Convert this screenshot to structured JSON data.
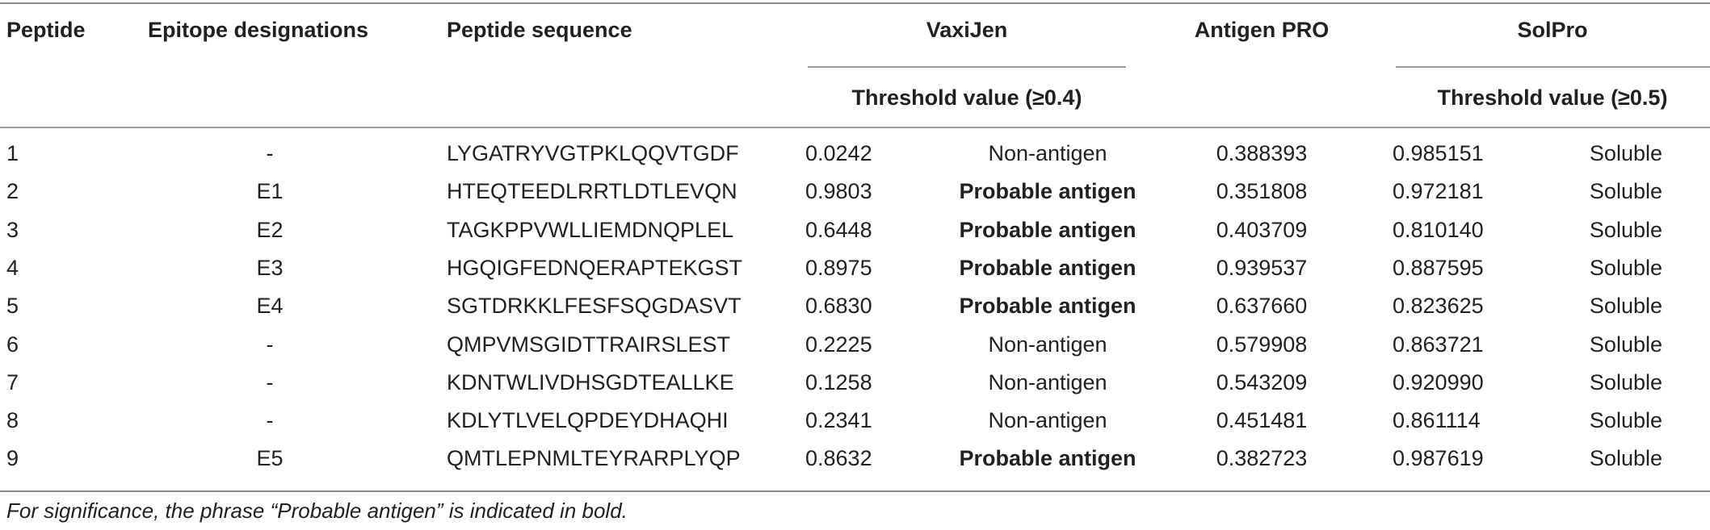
{
  "headers": {
    "peptide": "Peptide",
    "epitope": "Epitope designations",
    "sequence": "Peptide sequence",
    "vaxijen": "VaxiJen",
    "antigenpro": "Antigen PRO",
    "solpro": "SolPro",
    "vaxijen_threshold": "Threshold value (≥0.4)",
    "solpro_threshold": "Threshold value (≥0.5)"
  },
  "rows": [
    {
      "peptide": "1",
      "epitope": "-",
      "sequence": "LYGATRYVGTPKLQQVTGDF",
      "vaxijen_score": "0.0242",
      "vaxijen_call": "Non-antigen",
      "antigenpro": "0.388393",
      "solpro_score": "0.985151",
      "solpro_call": "Soluble"
    },
    {
      "peptide": "2",
      "epitope": "E1",
      "sequence": "HTEQTEEDLRRTLDTLEVQN",
      "vaxijen_score": "0.9803",
      "vaxijen_call": "Probable antigen",
      "antigenpro": "0.351808",
      "solpro_score": "0.972181",
      "solpro_call": "Soluble"
    },
    {
      "peptide": "3",
      "epitope": "E2",
      "sequence": "TAGKPPVWLLIEMDNQPLEL",
      "vaxijen_score": "0.6448",
      "vaxijen_call": "Probable antigen",
      "antigenpro": "0.403709",
      "solpro_score": "0.810140",
      "solpro_call": "Soluble"
    },
    {
      "peptide": "4",
      "epitope": "E3",
      "sequence": "HGQIGFEDNQERAPTEKGST",
      "vaxijen_score": "0.8975",
      "vaxijen_call": "Probable antigen",
      "antigenpro": "0.939537",
      "solpro_score": "0.887595",
      "solpro_call": "Soluble"
    },
    {
      "peptide": "5",
      "epitope": "E4",
      "sequence": "SGTDRKKLFESFSQGDASVT",
      "vaxijen_score": "0.6830",
      "vaxijen_call": "Probable antigen",
      "antigenpro": "0.637660",
      "solpro_score": "0.823625",
      "solpro_call": "Soluble"
    },
    {
      "peptide": "6",
      "epitope": "-",
      "sequence": "QMPVMSGIDTTRAIRSLEST",
      "vaxijen_score": "0.2225",
      "vaxijen_call": "Non-antigen",
      "antigenpro": "0.579908",
      "solpro_score": "0.863721",
      "solpro_call": "Soluble"
    },
    {
      "peptide": "7",
      "epitope": "-",
      "sequence": "KDNTWLIVDHSGDTEALLKE",
      "vaxijen_score": "0.1258",
      "vaxijen_call": "Non-antigen",
      "antigenpro": "0.543209",
      "solpro_score": "0.920990",
      "solpro_call": "Soluble"
    },
    {
      "peptide": "8",
      "epitope": "-",
      "sequence": "KDLYTLVELQPDEYDHAQHI",
      "vaxijen_score": "0.2341",
      "vaxijen_call": "Non-antigen",
      "antigenpro": "0.451481",
      "solpro_score": "0.861114",
      "solpro_call": "Soluble"
    },
    {
      "peptide": "9",
      "epitope": "E5",
      "sequence": "QMTLEPNMLTEYRARPLYQP",
      "vaxijen_score": "0.8632",
      "vaxijen_call": "Probable antigen",
      "antigenpro": "0.382723",
      "solpro_score": "0.987619",
      "solpro_call": "Soluble"
    }
  ],
  "bold_term": "Probable antigen",
  "footnote": "For significance, the phrase “Probable antigen” is indicated in bold."
}
